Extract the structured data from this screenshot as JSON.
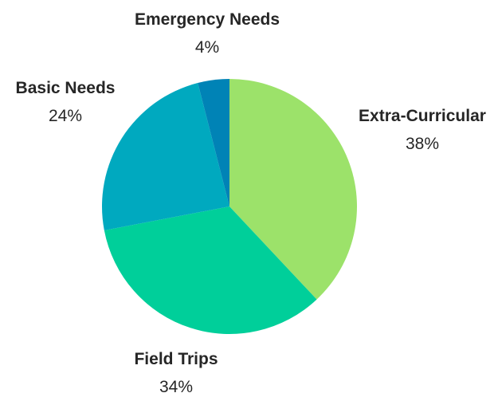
{
  "chart_data": {
    "type": "pie",
    "title": "",
    "start_angle_deg": 0,
    "direction": "clockwise",
    "slices": [
      {
        "label": "Extra-Curricular",
        "value": 38,
        "value_label": "38%",
        "color": "#9ce26a"
      },
      {
        "label": "Field Trips",
        "value": 34,
        "value_label": "34%",
        "color": "#00cf9a"
      },
      {
        "label": "Basic Needs",
        "value": 24,
        "value_label": "24%",
        "color": "#00a9bf"
      },
      {
        "label": "Emergency Needs",
        "value": 4,
        "value_label": "4%",
        "color": "#0083b6"
      }
    ]
  }
}
